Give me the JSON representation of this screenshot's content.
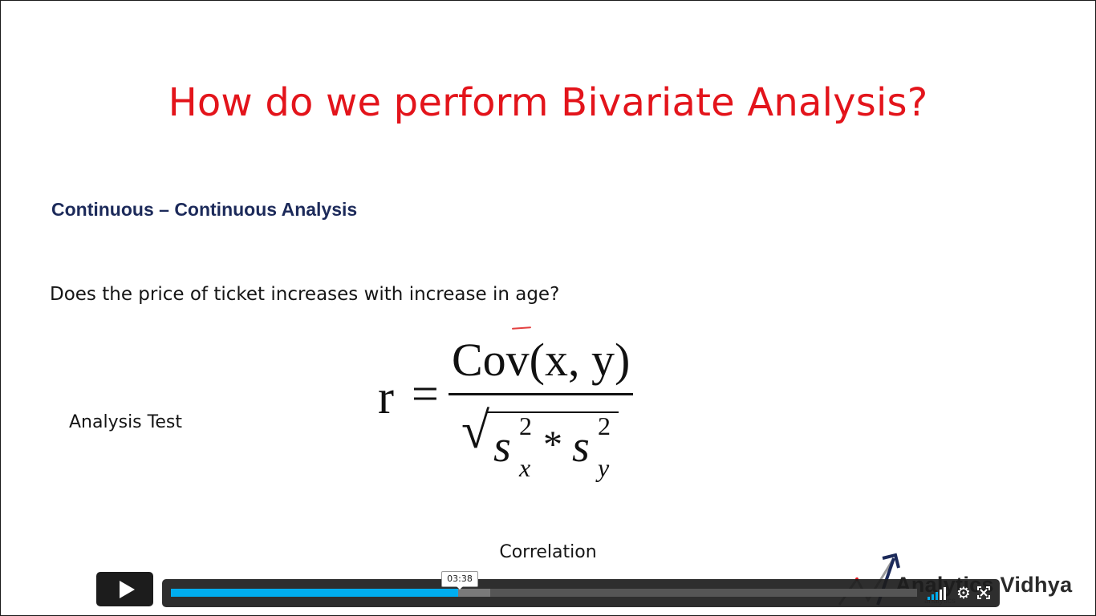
{
  "slide": {
    "title": "How do we perform Bivariate Analysis?",
    "subtitle": "Continuous – Continuous Analysis",
    "question": "Does the price of ticket increases with increase in age?",
    "label": "Analysis Test",
    "caption": "Correlation",
    "formula": {
      "lhs": "r",
      "equals": "=",
      "numerator": "Cov(x, y)",
      "radical": "√",
      "s_x": "s",
      "s_x_exp": "2",
      "s_x_sub": "x",
      "times": "*",
      "s_y": "s",
      "s_y_exp": "2",
      "s_y_sub": "y"
    }
  },
  "logo": {
    "name": "Analytics Vidhya",
    "tagline": "analytics"
  },
  "player": {
    "time_tooltip": "03:38",
    "progress_fraction": 0.385,
    "buffered_fraction": 0.428,
    "accent_color": "#00adef",
    "icons": {
      "play": "play-icon",
      "volume": "volume-icon",
      "settings": "gear-icon",
      "fullscreen": "fullscreen-icon"
    }
  }
}
